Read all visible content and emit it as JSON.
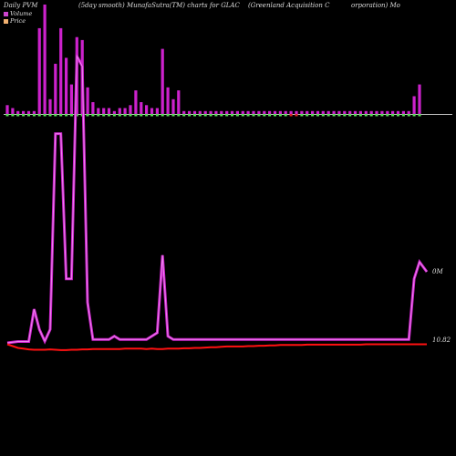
{
  "header": {
    "title_left": "Daily PVM",
    "title_mid": "(5day smooth) MunafaSutra(TM) charts for GLAC",
    "title_right_a": "(Greenland Acquisition  C",
    "title_right_b": "orporation) Mo"
  },
  "legend": [
    {
      "label": "Volume",
      "icon": "volume-swatch",
      "color": "#cc44cc"
    },
    {
      "label": "Price",
      "icon": "price-swatch",
      "color": "#f0b070"
    }
  ],
  "colors": {
    "background": "#000000",
    "volume": "#cc22cc",
    "volume_line": "#dd55dd",
    "price": "#ff1111",
    "baseline": "#bbbbbb",
    "up_marker": "#55dd55",
    "down_marker": "#dd2222"
  },
  "chart_data": {
    "type": "bar",
    "title": "Daily PVM",
    "series": [
      {
        "name": "Volume",
        "values": [
          3,
          2,
          1,
          1,
          1,
          1,
          29,
          37,
          5,
          17,
          29,
          19,
          10,
          26,
          25,
          9,
          4,
          2,
          2,
          2,
          1,
          2,
          2,
          3,
          8,
          4,
          3,
          2,
          2,
          22,
          9,
          5,
          8,
          1,
          1,
          1,
          1,
          1,
          1,
          1,
          1,
          1,
          1,
          1,
          1,
          1,
          1,
          1,
          1,
          1,
          1,
          1,
          1,
          1,
          1,
          1,
          1,
          1,
          1,
          1,
          1,
          1,
          1,
          1,
          1,
          1,
          1,
          1,
          1,
          1,
          1,
          1,
          1,
          1,
          1,
          1,
          6,
          10
        ]
      },
      {
        "name": "Price",
        "values": [
          0.0,
          0.5,
          1.0,
          1.2,
          1.4,
          1.5,
          1.5,
          1.5,
          1.4,
          1.5,
          1.6,
          1.6,
          1.5,
          1.5,
          1.4,
          1.4,
          1.3,
          1.3,
          1.3,
          1.3,
          1.3,
          1.3,
          1.2,
          1.2,
          1.2,
          1.2,
          1.3,
          1.2,
          1.3,
          1.3,
          1.2,
          1.2,
          1.2,
          1.1,
          1.1,
          1.0,
          1.0,
          0.9,
          0.8,
          0.8,
          0.7,
          0.6,
          0.6,
          0.6,
          0.6,
          0.5,
          0.5,
          0.4,
          0.4,
          0.3,
          0.3,
          0.2,
          0.2,
          0.2,
          0.2,
          0.2,
          0.1,
          0.1,
          0.1,
          0.1,
          0.1,
          0.1,
          0.1,
          0.1,
          0.1,
          0.1,
          0.1,
          0.0,
          0.0,
          0.0,
          0.0,
          0.0,
          0.0,
          0.0,
          0.0,
          0.0,
          0.0,
          0.0
        ]
      }
    ],
    "smoothed_volume": [
      0,
      0.2,
      0.4,
      0.4,
      0.4,
      10,
      4,
      0.5,
      4,
      62,
      62,
      19,
      19,
      85,
      82,
      12,
      1,
      1,
      1,
      1,
      2,
      1,
      1,
      1,
      1,
      1,
      1,
      2,
      3,
      26,
      2,
      1,
      1,
      1,
      1,
      1,
      1,
      1,
      1,
      1,
      1,
      1,
      1,
      1,
      1,
      1,
      1,
      1,
      1,
      1,
      1,
      1,
      1,
      1,
      1,
      1,
      1,
      1,
      1,
      1,
      1,
      1,
      1,
      1,
      1,
      1,
      1,
      1,
      1,
      1,
      1,
      1,
      1,
      1,
      1,
      1,
      19,
      24
    ],
    "markers": [
      "up",
      "up",
      "up",
      "up",
      "up",
      "up",
      "up",
      "up",
      "up",
      "up",
      "up",
      "up",
      "up",
      "up",
      "up",
      "up",
      "up",
      "up",
      "up",
      "up",
      "up",
      "up",
      "up",
      "up",
      "up",
      "up",
      "up",
      "up",
      "up",
      "up",
      "up",
      "up",
      "up",
      "up",
      "up",
      "up",
      "up",
      "up",
      "up",
      "up",
      "up",
      "up",
      "up",
      "up",
      "up",
      "up",
      "up",
      "up",
      "up",
      "up",
      "up",
      "up",
      "up",
      "down",
      "down",
      "up",
      "up",
      "up",
      "up",
      "up",
      "up",
      "up",
      "up",
      "up",
      "up",
      "up",
      "up",
      "up",
      "up",
      "up",
      "up",
      "up",
      "up",
      "up",
      "up",
      "up",
      "up",
      "up"
    ],
    "labels": {
      "volume_end": "0M",
      "price_end": "10.82"
    }
  }
}
